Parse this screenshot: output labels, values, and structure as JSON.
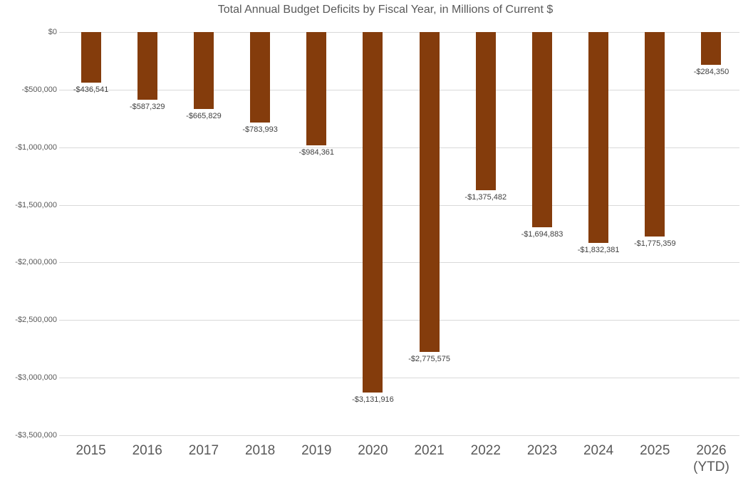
{
  "chart_data": {
    "type": "bar",
    "title": "Total Annual Budget Deficits by Fiscal Year, in Millions of Current $",
    "categories": [
      "2015",
      "2016",
      "2017",
      "2018",
      "2019",
      "2020",
      "2021",
      "2022",
      "2023",
      "2024",
      "2025",
      "2026\n(YTD)"
    ],
    "values": [
      -436541,
      -587329,
      -665829,
      -783993,
      -984361,
      -3131916,
      -2775575,
      -1375482,
      -1694883,
      -1832381,
      -1775359,
      -284350
    ],
    "data_labels": [
      "-$436,541",
      "-$587,329",
      "-$665,829",
      "-$783,993",
      "-$984,361",
      "-$3,131,916",
      "-$2,775,575",
      "-$1,375,482",
      "-$1,694,883",
      "-$1,832,381",
      "-$1,775,359",
      "-$284,350"
    ],
    "xlabel": "",
    "ylabel": "",
    "ylim": [
      -3500000,
      0
    ],
    "yticks": [
      {
        "value": 0,
        "label": "$0"
      },
      {
        "value": -500000,
        "label": "-$500,000"
      },
      {
        "value": -1000000,
        "label": "-$1,000,000"
      },
      {
        "value": -1500000,
        "label": "-$1,500,000"
      },
      {
        "value": -2000000,
        "label": "-$2,000,000"
      },
      {
        "value": -2500000,
        "label": "-$2,500,000"
      },
      {
        "value": -3000000,
        "label": "-$3,000,000"
      },
      {
        "value": -3500000,
        "label": "-$3,500,000"
      }
    ],
    "grid": true,
    "legend": "none",
    "colors": {
      "bar": "#843C0C",
      "gridline": "#D9D9D9",
      "title_text": "#595959",
      "axis_text": "#595959",
      "data_label_text": "#404040",
      "background": "#FFFFFF"
    }
  }
}
